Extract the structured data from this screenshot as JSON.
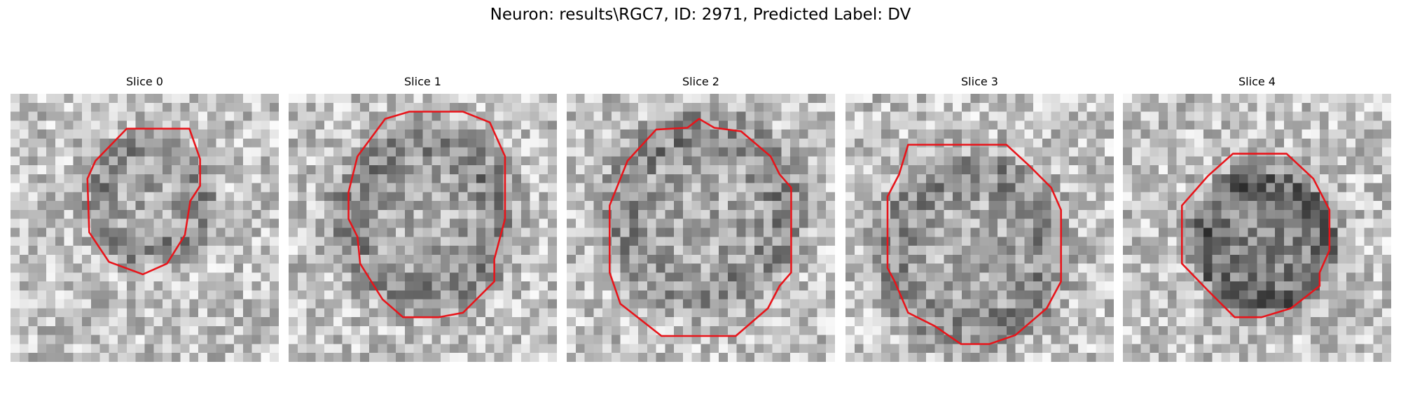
{
  "title": "Neuron: results\\RGC7, ID: 2971, Predicted Label: DV",
  "panels": [
    {
      "title": "Slice 0"
    },
    {
      "title": "Slice 1"
    },
    {
      "title": "Slice 2"
    },
    {
      "title": "Slice 3"
    },
    {
      "title": "Slice 4"
    }
  ]
}
